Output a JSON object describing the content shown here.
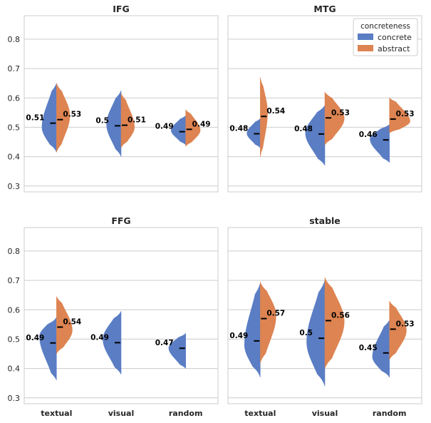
{
  "chart_data": {
    "type": "split-violin",
    "hue_title": "concreteness",
    "hue_levels": [
      {
        "name": "concrete",
        "color": "#5a7dc4"
      },
      {
        "name": "abstract",
        "color": "#dd8452"
      }
    ],
    "categories": [
      "textual",
      "visual",
      "random"
    ],
    "ylim": [
      0.28,
      0.88
    ],
    "yticks": [
      0.3,
      0.4,
      0.5,
      0.6,
      0.7,
      0.8
    ],
    "ytick_labels": [
      "0.3",
      "0.4",
      "0.5",
      "0.6",
      "0.7",
      "0.8"
    ],
    "legend_location": "top-right of MTG panel",
    "panels": [
      {
        "title": "IFG",
        "groups": [
          {
            "category": "textual",
            "concrete": {
              "mean": 0.514,
              "label": "0.51",
              "min": 0.415,
              "max": 0.65,
              "mode": 0.5,
              "peak": 0.6
            },
            "abstract": {
              "mean": 0.526,
              "label": "0.53",
              "min": 0.415,
              "max": 0.65,
              "mode": 0.54,
              "peak": 0.55
            }
          },
          {
            "category": "visual",
            "concrete": {
              "mean": 0.505,
              "label": "0.5",
              "min": 0.4,
              "max": 0.625,
              "mode": 0.51,
              "peak": 0.6
            },
            "abstract": {
              "mean": 0.507,
              "label": "0.51",
              "min": 0.43,
              "max": 0.615,
              "mode": 0.5,
              "peak": 0.55
            }
          },
          {
            "category": "random",
            "concrete": {
              "mean": 0.485,
              "label": "0.49",
              "min": 0.44,
              "max": 0.54,
              "mode": 0.49,
              "peak": 0.6
            },
            "abstract": {
              "mean": 0.493,
              "label": "0.49",
              "min": 0.435,
              "max": 0.56,
              "mode": 0.49,
              "peak": 0.6
            }
          }
        ]
      },
      {
        "title": "MTG",
        "groups": [
          {
            "category": "textual",
            "concrete": {
              "mean": 0.478,
              "label": "0.48",
              "min": 0.43,
              "max": 0.53,
              "mode": 0.48,
              "peak": 0.55
            },
            "abstract": {
              "mean": 0.537,
              "label": "0.54",
              "min": 0.4,
              "max": 0.67,
              "mode": 0.55,
              "peak": 0.3
            }
          },
          {
            "category": "visual",
            "concrete": {
              "mean": 0.477,
              "label": "0.48",
              "min": 0.37,
              "max": 0.575,
              "mode": 0.48,
              "peak": 0.8
            },
            "abstract": {
              "mean": 0.532,
              "label": "0.53",
              "min": 0.44,
              "max": 0.62,
              "mode": 0.53,
              "peak": 0.8
            }
          },
          {
            "category": "random",
            "concrete": {
              "mean": 0.457,
              "label": "0.46",
              "min": 0.38,
              "max": 0.51,
              "mode": 0.46,
              "peak": 0.8
            },
            "abstract": {
              "mean": 0.528,
              "label": "0.53",
              "min": 0.48,
              "max": 0.6,
              "mode": 0.52,
              "peak": 0.85
            }
          }
        ]
      },
      {
        "title": "FFG",
        "groups": [
          {
            "category": "textual",
            "concrete": {
              "mean": 0.487,
              "label": "0.49",
              "min": 0.36,
              "max": 0.575,
              "mode": 0.51,
              "peak": 0.7
            },
            "abstract": {
              "mean": 0.541,
              "label": "0.54",
              "min": 0.45,
              "max": 0.645,
              "mode": 0.53,
              "peak": 0.65
            }
          },
          {
            "category": "visual",
            "concrete": {
              "mean": 0.488,
              "label": "0.49",
              "min": 0.38,
              "max": 0.595,
              "mode": 0.5,
              "peak": 0.75
            }
          },
          {
            "category": "random",
            "concrete": {
              "mean": 0.469,
              "label": "0.47",
              "min": 0.4,
              "max": 0.52,
              "mode": 0.47,
              "peak": 0.7
            }
          }
        ]
      },
      {
        "title": "stable",
        "groups": [
          {
            "category": "textual",
            "concrete": {
              "mean": 0.494,
              "label": "0.49",
              "min": 0.37,
              "max": 0.69,
              "mode": 0.48,
              "peak": 0.65
            },
            "abstract": {
              "mean": 0.57,
              "label": "0.57",
              "min": 0.42,
              "max": 0.695,
              "mode": 0.58,
              "peak": 0.65
            }
          },
          {
            "category": "visual",
            "concrete": {
              "mean": 0.503,
              "label": "0.5",
              "min": 0.34,
              "max": 0.7,
              "mode": 0.49,
              "peak": 0.75
            },
            "abstract": {
              "mean": 0.563,
              "label": "0.56",
              "min": 0.4,
              "max": 0.71,
              "mode": 0.56,
              "peak": 0.8
            }
          },
          {
            "category": "random",
            "concrete": {
              "mean": 0.453,
              "label": "0.45",
              "min": 0.37,
              "max": 0.565,
              "mode": 0.44,
              "peak": 0.7
            },
            "abstract": {
              "mean": 0.534,
              "label": "0.53",
              "min": 0.43,
              "max": 0.63,
              "mode": 0.53,
              "peak": 0.7
            }
          }
        ]
      }
    ]
  }
}
